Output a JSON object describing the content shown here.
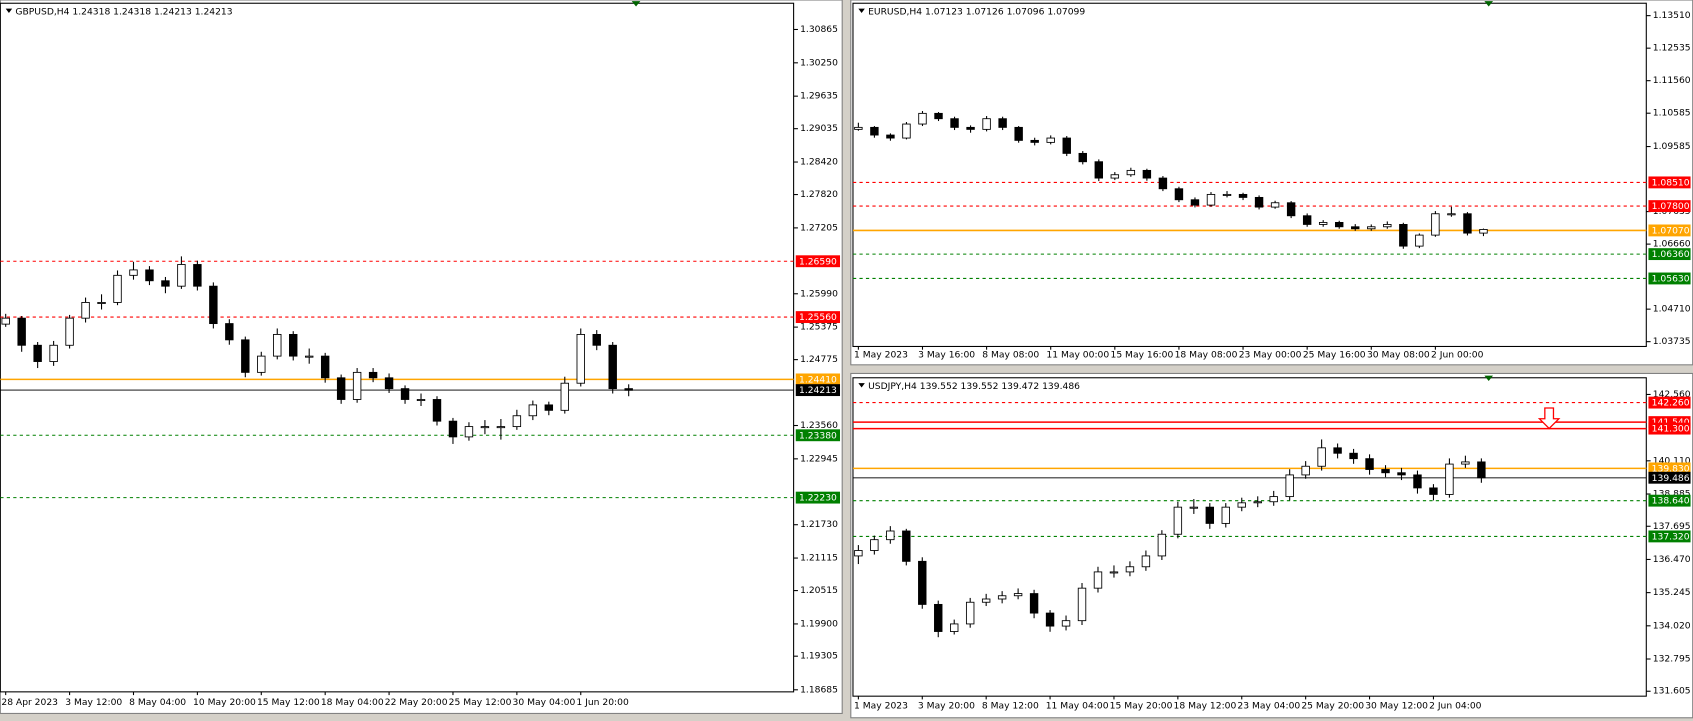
{
  "chart_data": [
    {
      "type": "candlestick",
      "title": "GBPUSD,H4  1.24318 1.24318 1.24213 1.24213",
      "up_color": "#ffffff",
      "down_color": "#000000",
      "ylim": [
        1.18647,
        1.31349
      ],
      "yticks": [
        1.30865,
        {
          "value": 1.3025,
          "label": "1.30250"
        },
        1.29635,
        1.29035,
        {
          "value": 1.2842,
          "label": "1.28420"
        },
        {
          "value": 1.2782,
          "label": "1.27820"
        },
        1.27205,
        {
          "value": 1.2599,
          "label": "1.25990"
        },
        1.25375,
        1.24775,
        {
          "value": 1.2356,
          "label": "1.23560"
        },
        1.22945,
        {
          "value": 1.2173,
          "label": "1.21730"
        },
        1.21115,
        1.20515,
        {
          "value": 1.199,
          "label": "1.19900"
        },
        1.19305,
        1.18685
      ],
      "levels": [
        {
          "value": 1.2659,
          "label": "1.26590",
          "color": "#ff0000",
          "style": "dashed"
        },
        {
          "value": 1.2556,
          "label": "1.25560",
          "color": "#ff0000",
          "style": "dashed"
        },
        {
          "value": 1.2441,
          "label": "1.24410",
          "color": "#ffa500",
          "style": "solid"
        },
        {
          "value": 1.24213,
          "label": "1.24213",
          "color": "#000000",
          "style": "solid"
        },
        {
          "value": 1.2338,
          "label": "1.23380",
          "color": "#008000",
          "style": "dashed"
        },
        {
          "value": 1.2223,
          "label": "1.22230",
          "color": "#008000",
          "style": "dashed"
        }
      ],
      "categories": [
        "28 Apr 2023",
        null,
        null,
        null,
        "3 May 12:00",
        null,
        null,
        null,
        "8 May 04:00",
        null,
        null,
        null,
        "10 May 20:00",
        null,
        null,
        null,
        "15 May 12:00",
        null,
        null,
        null,
        "18 May 04:00",
        null,
        null,
        null,
        "22 May 20:00",
        null,
        null,
        null,
        "25 May 12:00",
        null,
        null,
        null,
        "30 May 04:00",
        null,
        null,
        null,
        "1 Jun 20:00",
        null,
        null,
        null
      ],
      "ohlc": [
        [
          1.2543,
          1.2562,
          1.2538,
          1.2554
        ],
        [
          1.2554,
          1.2558,
          1.2492,
          1.2504
        ],
        [
          1.2504,
          1.251,
          1.2462,
          1.2474
        ],
        [
          1.2474,
          1.2512,
          1.2466,
          1.2504
        ],
        [
          1.2504,
          1.256,
          1.2498,
          1.2554
        ],
        [
          1.2554,
          1.2592,
          1.2546,
          1.2583
        ],
        [
          1.2583,
          1.2598,
          1.257,
          1.2583
        ],
        [
          1.2583,
          1.2642,
          1.2578,
          1.2633
        ],
        [
          1.2633,
          1.2658,
          1.2625,
          1.2643
        ],
        [
          1.2643,
          1.265,
          1.2615,
          1.2623
        ],
        [
          1.2623,
          1.263,
          1.26,
          1.2613
        ],
        [
          1.2613,
          1.2668,
          1.2608,
          1.2653
        ],
        [
          1.2653,
          1.266,
          1.2605,
          1.2613
        ],
        [
          1.2613,
          1.262,
          1.2535,
          1.2544
        ],
        [
          1.2544,
          1.2552,
          1.2505,
          1.2514
        ],
        [
          1.2514,
          1.252,
          1.2445,
          1.2454
        ],
        [
          1.2454,
          1.2492,
          1.2448,
          1.2484
        ],
        [
          1.2484,
          1.2535,
          1.2478,
          1.2524
        ],
        [
          1.2524,
          1.253,
          1.2476,
          1.2484
        ],
        [
          1.2484,
          1.2498,
          1.247,
          1.2484
        ],
        [
          1.2484,
          1.249,
          1.2435,
          1.2444
        ],
        [
          1.2444,
          1.245,
          1.2396,
          1.2404
        ],
        [
          1.2404,
          1.2462,
          1.2398,
          1.2454
        ],
        [
          1.2454,
          1.2462,
          1.2436,
          1.2444
        ],
        [
          1.2444,
          1.2452,
          1.2416,
          1.2424
        ],
        [
          1.2424,
          1.243,
          1.2396,
          1.2404
        ],
        [
          1.2404,
          1.2415,
          1.2392,
          1.2404
        ],
        [
          1.2404,
          1.241,
          1.2356,
          1.2364
        ],
        [
          1.2364,
          1.237,
          1.2322,
          1.2335
        ],
        [
          1.2335,
          1.2362,
          1.2328,
          1.2354
        ],
        [
          1.2354,
          1.2366,
          1.234,
          1.2354
        ],
        [
          1.2354,
          1.2368,
          1.233,
          1.2354
        ],
        [
          1.2354,
          1.2385,
          1.2348,
          1.2374
        ],
        [
          1.2374,
          1.2402,
          1.2366,
          1.2394
        ],
        [
          1.2394,
          1.24,
          1.2375,
          1.2384
        ],
        [
          1.2384,
          1.2446,
          1.2378,
          1.2434
        ],
        [
          1.2434,
          1.2535,
          1.2428,
          1.2524
        ],
        [
          1.2524,
          1.2532,
          1.2495,
          1.2504
        ],
        [
          1.2504,
          1.251,
          1.2415,
          1.2424
        ],
        [
          1.2424,
          1.2432,
          1.241,
          1.24213
        ]
      ]
    },
    {
      "type": "candlestick",
      "title": "EURUSD,H4  1.07123 1.07126 1.07096 1.07099",
      "up_color": "#ffffff",
      "down_color": "#000000",
      "ylim": [
        1.03591,
        1.13882
      ],
      "yticks": [
        {
          "value": 1.1351,
          "label": "1.13510"
        },
        1.12535,
        {
          "value": 1.1156,
          "label": "1.11560"
        },
        1.10585,
        1.09585,
        1.07635,
        {
          "value": 1.0666,
          "label": "1.06660"
        },
        {
          "value": 1.0471,
          "label": "1.04710"
        },
        1.03735
      ],
      "levels": [
        {
          "value": 1.0851,
          "label": "1.08510",
          "color": "#ff0000",
          "style": "dashed"
        },
        {
          "value": 1.078,
          "label": "1.07800",
          "color": "#ff0000",
          "style": "dashed"
        },
        {
          "value": 1.0707,
          "label": "1.07070",
          "color": "#ffa500",
          "style": "solid"
        },
        {
          "value": 1.0636,
          "label": "1.06360",
          "color": "#008000",
          "style": "dashed"
        },
        {
          "value": 1.0563,
          "label": "1.05630",
          "color": "#008000",
          "style": "dashed"
        }
      ],
      "categories": [
        "1 May 2023",
        null,
        null,
        null,
        "3 May 16:00",
        null,
        null,
        null,
        "8 May 08:00",
        null,
        null,
        null,
        "11 May 00:00",
        null,
        null,
        null,
        "15 May 16:00",
        null,
        null,
        null,
        "18 May 08:00",
        null,
        null,
        null,
        "23 May 00:00",
        null,
        null,
        null,
        "25 May 16:00",
        null,
        null,
        null,
        "30 May 08:00",
        null,
        null,
        null,
        "2 Jun 00:00",
        null,
        null,
        null
      ],
      "ohlc": [
        [
          1.101,
          1.103,
          1.1006,
          1.1016
        ],
        [
          1.1016,
          1.102,
          1.0985,
          1.0993
        ],
        [
          1.0993,
          1.0998,
          1.0976,
          1.0984
        ],
        [
          1.0984,
          1.1032,
          1.098,
          1.1026
        ],
        [
          1.1026,
          1.1065,
          1.102,
          1.1058
        ],
        [
          1.1058,
          1.1062,
          1.1035,
          1.1042
        ],
        [
          1.1042,
          1.1048,
          1.1008,
          1.1016
        ],
        [
          1.1016,
          1.1022,
          1.1,
          1.101
        ],
        [
          1.101,
          1.105,
          1.1004,
          1.1042
        ],
        [
          1.1042,
          1.1048,
          1.1008,
          1.1016
        ],
        [
          1.1016,
          1.102,
          1.097,
          1.0977
        ],
        [
          1.0977,
          1.0985,
          1.0962,
          1.0971
        ],
        [
          1.0971,
          1.0992,
          1.0965,
          1.0984
        ],
        [
          1.0984,
          1.099,
          1.093,
          1.0938
        ],
        [
          1.0938,
          1.0945,
          1.0905,
          1.0913
        ],
        [
          1.0913,
          1.092,
          1.0855,
          1.0864
        ],
        [
          1.0864,
          1.0882,
          1.0858,
          1.0874
        ],
        [
          1.0874,
          1.0895,
          1.0868,
          1.0887
        ],
        [
          1.0887,
          1.0892,
          1.0856,
          1.0864
        ],
        [
          1.0864,
          1.087,
          1.0825,
          1.0832
        ],
        [
          1.0832,
          1.0838,
          1.0792,
          1.0799
        ],
        [
          1.0799,
          1.0806,
          1.0776,
          1.0783
        ],
        [
          1.0783,
          1.0822,
          1.0778,
          1.0815
        ],
        [
          1.0815,
          1.0825,
          1.0806,
          1.0815
        ],
        [
          1.0815,
          1.082,
          1.0798,
          1.0806
        ],
        [
          1.0806,
          1.0812,
          1.077,
          1.0777
        ],
        [
          1.0777,
          1.0796,
          1.0772,
          1.079
        ],
        [
          1.079,
          1.0795,
          1.0744,
          1.0751
        ],
        [
          1.0751,
          1.0758,
          1.0718,
          1.0725
        ],
        [
          1.0725,
          1.0738,
          1.0718,
          1.0731
        ],
        [
          1.0731,
          1.0736,
          1.0712,
          1.0718
        ],
        [
          1.0718,
          1.0726,
          1.0706,
          1.0712
        ],
        [
          1.0712,
          1.0725,
          1.0706,
          1.0718
        ],
        [
          1.0718,
          1.0734,
          1.0712,
          1.0725
        ],
        [
          1.0725,
          1.073,
          1.0652,
          1.066
        ],
        [
          1.066,
          1.0698,
          1.0654,
          1.0693
        ],
        [
          1.0693,
          1.0765,
          1.0688,
          1.0757
        ],
        [
          1.0757,
          1.0778,
          1.0748,
          1.0757
        ],
        [
          1.0757,
          1.0762,
          1.0692,
          1.0699
        ],
        [
          1.0699,
          1.07126,
          1.069,
          1.07099
        ]
      ]
    },
    {
      "type": "candlestick",
      "title": "USDJPY,H4  139.552 139.552 139.472 139.486",
      "up_color": "#ffffff",
      "down_color": "#000000",
      "ylim": [
        131.423,
        143.176
      ],
      "yticks": [
        {
          "value": 142.56,
          "label": "142.560"
        },
        {
          "value": 140.11,
          "label": "140.110"
        },
        138.885,
        137.695,
        {
          "value": 136.47,
          "label": "136.470"
        },
        135.245,
        {
          "value": 134.02,
          "label": "134.020"
        },
        132.795,
        131.605
      ],
      "levels": [
        {
          "value": 142.26,
          "label": "142.260",
          "color": "#ff0000",
          "style": "dashed"
        },
        {
          "value": 141.54,
          "label": "141.540",
          "color": "#ff0000",
          "style": "solid"
        },
        {
          "value": 141.3,
          "label": "141.300",
          "color": "#ff0000",
          "style": "solid"
        },
        {
          "value": 139.83,
          "label": "139.830",
          "color": "#ffa500",
          "style": "solid"
        },
        {
          "value": 139.486,
          "label": "139.486",
          "color": "#000000",
          "style": "solid"
        },
        {
          "value": 138.64,
          "label": "138.640",
          "color": "#008000",
          "style": "dashed"
        },
        {
          "value": 137.32,
          "label": "137.320",
          "color": "#008000",
          "style": "dashed"
        }
      ],
      "categories": [
        "1 May 2023",
        null,
        null,
        null,
        "3 May 20:00",
        null,
        null,
        null,
        "8 May 12:00",
        null,
        null,
        null,
        "11 May 04:00",
        null,
        null,
        null,
        "15 May 20:00",
        null,
        null,
        null,
        "18 May 12:00",
        null,
        null,
        null,
        "23 May 04:00",
        null,
        null,
        null,
        "25 May 20:00",
        null,
        null,
        null,
        "30 May 12:00",
        null,
        null,
        null,
        "2 Jun 04:00",
        null,
        null,
        null
      ],
      "ohlc": [
        [
          136.6,
          137,
          136.3,
          136.8
        ],
        [
          136.8,
          137.35,
          136.65,
          137.2
        ],
        [
          137.2,
          137.7,
          137.05,
          137.52
        ],
        [
          137.52,
          137.6,
          136.25,
          136.4
        ],
        [
          136.4,
          136.55,
          134.65,
          134.81
        ],
        [
          134.81,
          134.95,
          133.6,
          133.81
        ],
        [
          133.81,
          134.25,
          133.7,
          134.09
        ],
        [
          134.09,
          135.05,
          133.95,
          134.89
        ],
        [
          134.89,
          135.2,
          134.75,
          135.01
        ],
        [
          135.01,
          135.3,
          134.85,
          135.13
        ],
        [
          135.13,
          135.4,
          135,
          135.21
        ],
        [
          135.21,
          135.35,
          134.3,
          134.49
        ],
        [
          134.49,
          134.6,
          133.8,
          134.01
        ],
        [
          134.01,
          134.4,
          133.85,
          134.21
        ],
        [
          134.21,
          135.6,
          134.05,
          135.41
        ],
        [
          135.41,
          136.2,
          135.25,
          136.01
        ],
        [
          136.01,
          136.25,
          135.8,
          136.01
        ],
        [
          136.01,
          136.4,
          135.85,
          136.2
        ],
        [
          136.2,
          136.8,
          136.05,
          136.6
        ],
        [
          136.6,
          137.55,
          136.45,
          137.4
        ],
        [
          137.4,
          138.6,
          137.25,
          138.4
        ],
        [
          138.4,
          138.7,
          138.15,
          138.4
        ],
        [
          138.4,
          138.55,
          137.6,
          137.8
        ],
        [
          137.8,
          138.55,
          137.65,
          138.4
        ],
        [
          138.4,
          138.75,
          138.25,
          138.56
        ],
        [
          138.56,
          138.8,
          138.4,
          138.6
        ],
        [
          138.6,
          139,
          138.45,
          138.79
        ],
        [
          138.79,
          139.8,
          138.65,
          139.59
        ],
        [
          139.59,
          140.1,
          139.45,
          139.91
        ],
        [
          139.91,
          140.9,
          139.75,
          140.59
        ],
        [
          140.59,
          140.75,
          140.2,
          140.39
        ],
        [
          140.39,
          140.55,
          140,
          140.19
        ],
        [
          140.19,
          140.35,
          139.6,
          139.79
        ],
        [
          139.79,
          139.95,
          139.5,
          139.67
        ],
        [
          139.67,
          139.85,
          139.4,
          139.59
        ],
        [
          139.59,
          139.75,
          138.9,
          139.11
        ],
        [
          139.11,
          139.25,
          138.65,
          138.87
        ],
        [
          138.87,
          140.2,
          138.75,
          139.99
        ],
        [
          139.99,
          140.3,
          139.85,
          140.07
        ],
        [
          140.07,
          140.2,
          139.3,
          139.486
        ]
      ]
    }
  ]
}
